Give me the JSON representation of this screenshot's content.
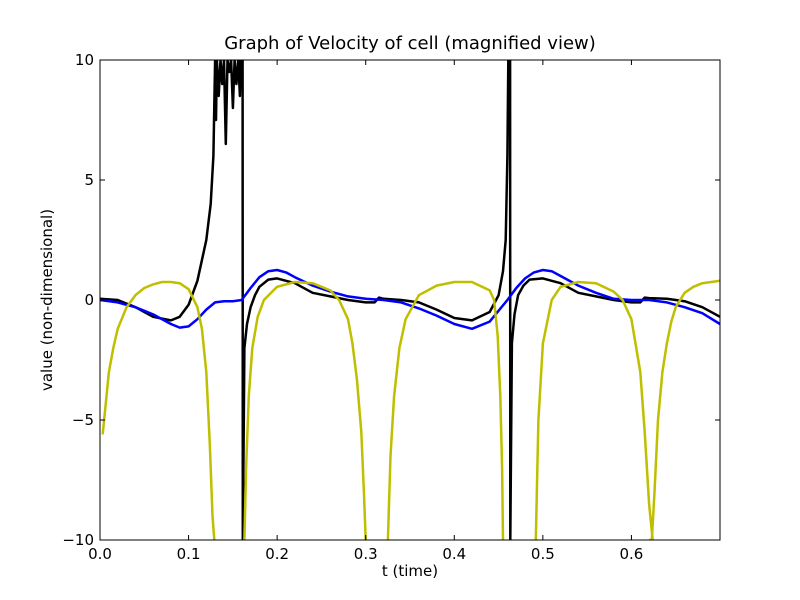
{
  "chart_data": {
    "type": "line",
    "title": "Graph of Velocity of cell (magnified view)",
    "xlabel": "t (time)",
    "ylabel": "value (non-dimensional)",
    "xlim": [
      0.0,
      0.7
    ],
    "ylim": [
      -10,
      10
    ],
    "x_ticks": [
      0.0,
      0.1,
      0.2,
      0.3,
      0.4,
      0.5,
      0.6
    ],
    "x_tick_labels": [
      "0.0",
      "0.1",
      "0.2",
      "0.3",
      "0.4",
      "0.5",
      "0.6"
    ],
    "y_ticks": [
      -10,
      -5,
      0,
      5,
      10
    ],
    "y_tick_labels": [
      "−10",
      "−5",
      "0",
      "5",
      "10"
    ],
    "grid": false,
    "legend": "none",
    "series": [
      {
        "color": "#000000",
        "x": [
          0.0,
          0.02,
          0.04,
          0.06,
          0.08,
          0.09,
          0.1,
          0.11,
          0.12,
          0.125,
          0.128,
          0.13,
          0.131,
          0.132,
          0.134,
          0.136,
          0.138,
          0.14,
          0.142,
          0.144,
          0.146,
          0.148,
          0.15,
          0.152,
          0.154,
          0.156,
          0.158,
          0.159,
          0.16,
          0.161,
          0.1612,
          0.163,
          0.166,
          0.17,
          0.175,
          0.18,
          0.19,
          0.2,
          0.22,
          0.24,
          0.26,
          0.28,
          0.3,
          0.31,
          0.315,
          0.32,
          0.34,
          0.36,
          0.38,
          0.4,
          0.42,
          0.44,
          0.45,
          0.455,
          0.458,
          0.46,
          0.461,
          0.462,
          0.463,
          0.4632,
          0.465,
          0.468,
          0.472,
          0.478,
          0.485,
          0.5,
          0.52,
          0.54,
          0.56,
          0.58,
          0.6,
          0.61,
          0.615,
          0.62,
          0.64,
          0.66,
          0.68,
          0.7
        ],
        "y": [
          0.05,
          0.0,
          -0.3,
          -0.7,
          -0.85,
          -0.7,
          -0.2,
          0.8,
          2.5,
          4.0,
          6.0,
          10.0,
          7.5,
          10.0,
          8.5,
          10.0,
          9.0,
          10.0,
          6.5,
          10.0,
          9.5,
          10.0,
          8.0,
          10.0,
          9.0,
          10.0,
          8.5,
          10.0,
          10.0,
          10.0,
          -10.0,
          -2.0,
          -1.0,
          -0.3,
          0.2,
          0.55,
          0.85,
          0.9,
          0.7,
          0.3,
          0.15,
          0.0,
          -0.1,
          -0.1,
          0.1,
          0.05,
          0.0,
          -0.1,
          -0.4,
          -0.75,
          -0.85,
          -0.5,
          0.2,
          1.2,
          2.5,
          6.0,
          10.0,
          9.0,
          10.0,
          -10.0,
          -1.8,
          -0.6,
          0.2,
          0.6,
          0.85,
          0.9,
          0.7,
          0.3,
          0.15,
          0.0,
          -0.1,
          -0.1,
          0.1,
          0.08,
          0.05,
          -0.05,
          -0.3,
          -0.7
        ]
      },
      {
        "color": "#0000ff",
        "x": [
          0.0,
          0.02,
          0.04,
          0.06,
          0.08,
          0.09,
          0.1,
          0.11,
          0.12,
          0.13,
          0.14,
          0.15,
          0.16,
          0.17,
          0.18,
          0.19,
          0.2,
          0.21,
          0.22,
          0.24,
          0.26,
          0.28,
          0.3,
          0.32,
          0.34,
          0.36,
          0.38,
          0.4,
          0.42,
          0.44,
          0.46,
          0.47,
          0.48,
          0.49,
          0.5,
          0.51,
          0.52,
          0.54,
          0.56,
          0.58,
          0.6,
          0.62,
          0.64,
          0.66,
          0.68,
          0.7
        ],
        "y": [
          0.0,
          -0.1,
          -0.3,
          -0.6,
          -1.0,
          -1.15,
          -1.1,
          -0.8,
          -0.4,
          -0.1,
          -0.05,
          -0.05,
          0.0,
          0.5,
          0.95,
          1.2,
          1.25,
          1.15,
          0.95,
          0.6,
          0.35,
          0.15,
          0.05,
          0.0,
          -0.1,
          -0.35,
          -0.65,
          -1.0,
          -1.2,
          -0.9,
          0.0,
          0.5,
          0.9,
          1.15,
          1.25,
          1.2,
          1.0,
          0.6,
          0.3,
          0.05,
          0.0,
          0.0,
          -0.1,
          -0.3,
          -0.55,
          -1.0
        ]
      },
      {
        "color": "#bfbf00",
        "x": [
          0.003,
          0.006,
          0.01,
          0.015,
          0.02,
          0.03,
          0.04,
          0.05,
          0.06,
          0.07,
          0.08,
          0.09,
          0.1,
          0.11,
          0.115,
          0.12,
          0.124,
          0.127,
          0.129,
          0.13,
          null,
          0.163,
          0.165,
          0.168,
          0.172,
          0.178,
          0.185,
          0.2,
          0.22,
          0.24,
          0.26,
          0.27,
          0.28,
          0.285,
          0.29,
          0.295,
          0.298,
          0.3,
          null,
          0.325,
          0.328,
          0.332,
          0.338,
          0.345,
          0.36,
          0.38,
          0.4,
          0.42,
          0.44,
          0.445,
          0.449,
          0.452,
          0.454,
          0.455,
          null,
          0.492,
          0.495,
          0.5,
          0.51,
          0.52,
          0.54,
          0.56,
          0.58,
          0.59,
          0.6,
          0.61,
          0.615,
          0.62,
          0.624,
          0.625,
          null,
          0.62,
          0.623,
          0.626,
          0.63,
          0.635,
          0.64,
          0.645,
          0.65,
          0.66,
          0.67,
          0.68,
          0.69,
          0.7
        ],
        "y": [
          -5.6,
          -4.5,
          -3.0,
          -2.0,
          -1.2,
          -0.3,
          0.2,
          0.5,
          0.65,
          0.75,
          0.75,
          0.7,
          0.45,
          -0.3,
          -1.2,
          -3.0,
          -6.0,
          -9.0,
          -10.0,
          -10.0,
          null,
          -10.0,
          -7.0,
          -4.0,
          -2.0,
          -0.7,
          0.0,
          0.55,
          0.75,
          0.7,
          0.4,
          0.0,
          -0.8,
          -1.8,
          -3.3,
          -5.5,
          -8.0,
          -10.0,
          null,
          -10.0,
          -6.5,
          -4.0,
          -2.0,
          -0.8,
          0.2,
          0.6,
          0.75,
          0.75,
          0.4,
          0.0,
          -1.5,
          -4.0,
          -7.0,
          -10.0,
          null,
          -10.0,
          -5.0,
          -1.8,
          0.0,
          0.55,
          0.75,
          0.7,
          0.35,
          0.0,
          -0.8,
          -3.0,
          -5.5,
          -8.5,
          -10.0,
          -10.0,
          null,
          -10.0,
          -10.0,
          -8.0,
          -5.0,
          -3.0,
          -1.8,
          -0.9,
          -0.3,
          0.3,
          0.55,
          0.7,
          0.75,
          0.8
        ]
      }
    ]
  }
}
